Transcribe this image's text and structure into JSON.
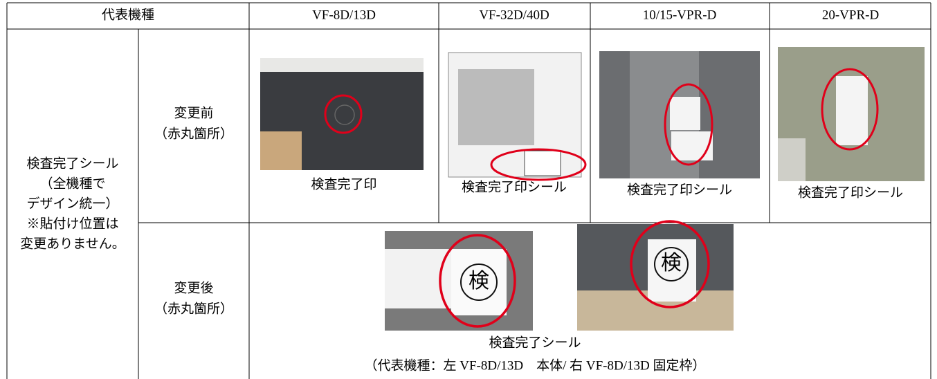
{
  "table": {
    "header": [
      "代表機種",
      "VF-8D/13D",
      "VF-32D/40D",
      "10/15-VPR-D",
      "20-VPR-D"
    ],
    "row_label": [
      "検査完了シール",
      "（全機種で",
      "デザイン統一）",
      "※貼付け位置は",
      "変更ありません。"
    ],
    "before": {
      "label": [
        "変更前",
        "（赤丸箇所）"
      ],
      "captions": [
        "検査完了印",
        "検査完了印シール",
        "検査完了印シール",
        "検査完了印シール"
      ]
    },
    "after": {
      "label": [
        "変更後",
        "（赤丸箇所）"
      ],
      "stamp": "検",
      "caption": [
        "検査完了シール",
        "（代表機種：左 VF-8D/13D　本体/ 右 VF-8D/13D 固定枠）"
      ]
    }
  }
}
